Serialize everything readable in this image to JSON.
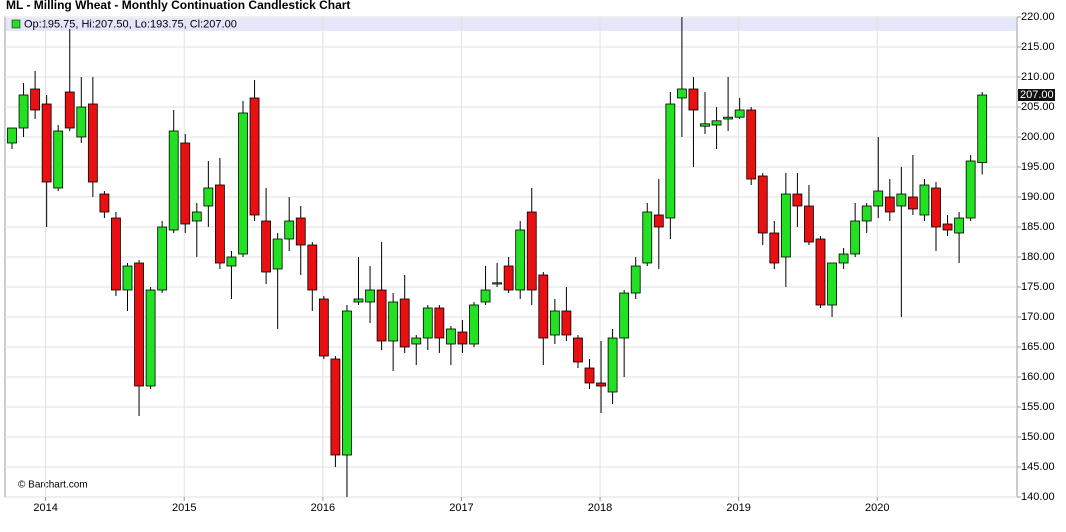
{
  "chart_data": {
    "type": "candlestick",
    "title": "ML - Milling Wheat - Monthly Continuation Candlestick Chart",
    "legend_text": "Op:195.75, Hi:207.50, Lo:193.75, Cl:207.00",
    "source": "© Barchart.com",
    "up_color": "#22e022",
    "down_color": "#e81010",
    "grid": true,
    "categories": [
      null,
      null,
      null,
      "2014",
      null,
      null,
      null,
      null,
      null,
      null,
      null,
      null,
      null,
      null,
      null,
      "2015",
      null,
      null,
      null,
      null,
      null,
      null,
      null,
      null,
      null,
      null,
      null,
      "2016",
      null,
      null,
      null,
      null,
      null,
      null,
      null,
      null,
      null,
      null,
      null,
      "2017",
      null,
      null,
      null,
      null,
      null,
      null,
      null,
      null,
      null,
      null,
      null,
      "2018",
      null,
      null,
      null,
      null,
      null,
      null,
      null,
      null,
      null,
      null,
      null,
      "2019",
      null,
      null,
      null,
      null,
      null,
      null,
      null,
      null,
      null,
      null,
      null,
      "2020",
      null,
      null,
      null,
      null,
      null,
      null,
      null,
      null,
      null
    ],
    "open": [
      199,
      201.5,
      208,
      205.5,
      191.5,
      207.5,
      200,
      205.5,
      190.5,
      186.5,
      174.5,
      179,
      158.5,
      174.5,
      184.5,
      199,
      186,
      188.5,
      192,
      178.5,
      180.5,
      206.5,
      186,
      178,
      183,
      186.5,
      182,
      173,
      163,
      147,
      172.5,
      172.5,
      174.5,
      166,
      173,
      165.5,
      166.5,
      171.5,
      165.5,
      167.5,
      165.5,
      172.5,
      175.5,
      178.5,
      174.5,
      187.5,
      177,
      167,
      171,
      166.5,
      161.5,
      159,
      157.5,
      166.5,
      174,
      179,
      187,
      186.5,
      206.5,
      208,
      201.8,
      202,
      203,
      203.3,
      204.5,
      193.5,
      184,
      180,
      190.5,
      188.5,
      183,
      172,
      179,
      180.5,
      186,
      188.5,
      190,
      188.5,
      190,
      187,
      191.5,
      185.5,
      184,
      186.5,
      195.75
    ],
    "high": [
      201.5,
      209,
      211,
      207,
      202,
      218,
      210,
      210,
      191,
      187.5,
      179,
      179.5,
      175,
      186,
      204.5,
      200.5,
      189,
      196,
      196.5,
      181,
      206,
      209.5,
      191.5,
      184,
      190,
      188.5,
      182.5,
      173.5,
      163.5,
      172,
      180,
      178.5,
      182.5,
      174,
      177,
      167,
      172,
      172,
      168.5,
      169.5,
      172.5,
      178.5,
      179,
      180,
      186,
      191.5,
      177.5,
      173,
      175,
      167,
      163,
      166,
      168,
      174.5,
      180,
      189,
      193,
      207.5,
      220,
      210,
      207.5,
      205,
      210,
      206.5,
      205,
      194,
      186,
      194,
      194,
      192,
      183.5,
      179,
      181.5,
      189,
      189,
      200,
      193,
      195,
      197,
      193,
      192.5,
      187,
      187.5,
      197,
      207.5
    ],
    "low": [
      198,
      200,
      203,
      185,
      191,
      201,
      199,
      190,
      186.5,
      173.5,
      171,
      153.5,
      158,
      174,
      184,
      184,
      180,
      185,
      178,
      173,
      180,
      186,
      175.5,
      168,
      181,
      177,
      171,
      163,
      145,
      140,
      172,
      169,
      164.5,
      161,
      164,
      162,
      164.5,
      164,
      162,
      164,
      165,
      172,
      175,
      174,
      173,
      172,
      162,
      165.5,
      166,
      161.5,
      158,
      154,
      155.5,
      160,
      173,
      178.5,
      178,
      183,
      200,
      195,
      200.5,
      198,
      201,
      203,
      192,
      182,
      178,
      175,
      185,
      182,
      171.5,
      170,
      178,
      180,
      184,
      186.5,
      186,
      170,
      187,
      186,
      181,
      183.5,
      179,
      186,
      193.75
    ],
    "close": [
      201.5,
      207,
      204.5,
      192.5,
      201,
      201.5,
      205,
      192.5,
      187.5,
      174.5,
      178.5,
      158.5,
      174.5,
      185,
      201,
      185.5,
      187.5,
      191.5,
      179,
      180,
      204,
      187,
      177.5,
      183,
      186,
      182,
      174.5,
      163.5,
      147,
      171,
      173,
      174.5,
      166,
      172.5,
      165,
      166.5,
      171.5,
      166.5,
      168,
      165.5,
      172,
      174.5,
      175.7,
      174.5,
      184.5,
      174.5,
      166.5,
      171,
      167,
      162.5,
      159,
      158.5,
      166.5,
      174,
      178.5,
      187.5,
      185,
      205.5,
      208,
      204.5,
      202.2,
      202.7,
      203.3,
      204.5,
      193,
      184,
      179,
      190.5,
      188.5,
      182.5,
      172,
      179,
      180.5,
      186,
      188.5,
      191,
      187.5,
      190.5,
      188,
      192,
      185,
      184.5,
      186.5,
      196,
      207
    ],
    "last_price": {
      "value": 207,
      "label": "207.00"
    },
    "ylim": [
      140,
      220
    ],
    "yticks": [
      {
        "value": 140,
        "label": "140.00"
      },
      {
        "value": 145,
        "label": "145.00"
      },
      {
        "value": 150,
        "label": "150.00"
      },
      {
        "value": 155,
        "label": "155.00"
      },
      {
        "value": 160,
        "label": "160.00"
      },
      {
        "value": 165,
        "label": "165.00"
      },
      {
        "value": 170,
        "label": "170.00"
      },
      {
        "value": 175,
        "label": "175.00"
      },
      {
        "value": 180,
        "label": "180.00"
      },
      {
        "value": 185,
        "label": "185.00"
      },
      {
        "value": 190,
        "label": "190.00"
      },
      {
        "value": 195,
        "label": "195.00"
      },
      {
        "value": 200,
        "label": "200.00"
      },
      {
        "value": 205,
        "label": "205.00"
      },
      {
        "value": 210,
        "label": "210.00"
      },
      {
        "value": 215,
        "label": "215.00"
      },
      {
        "value": 220,
        "label": "220.00"
      }
    ]
  }
}
